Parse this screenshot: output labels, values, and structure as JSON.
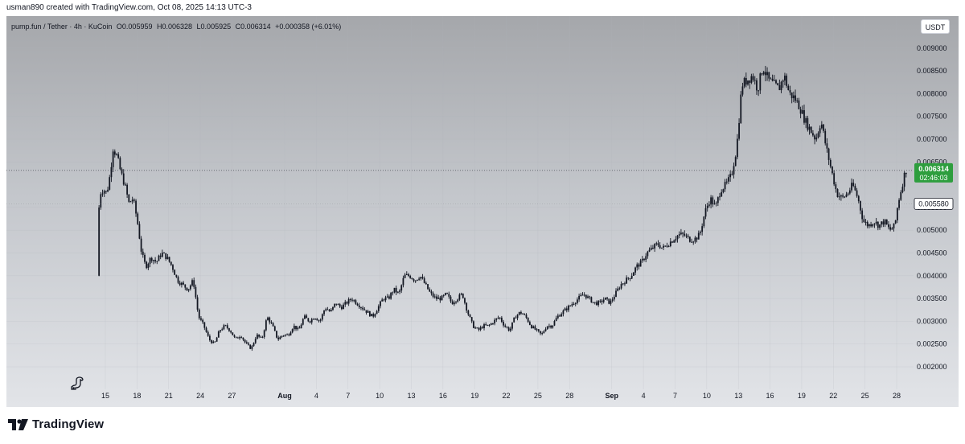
{
  "header": {
    "credit": "usman890 created with TradingView.com, Oct 08, 2025 14:13 UTC-3"
  },
  "legend": {
    "symbol": "pump.fun / Tether · 4h · KuCoin",
    "open": "O0.005959",
    "high": "H0.006328",
    "low": "L0.005925",
    "close": "C0.006314",
    "change": "+0.000358 (+6.01%)"
  },
  "currency_button": "USDT",
  "price_badge": {
    "price": "0.006314",
    "countdown": "02:46:03",
    "color": "#2e9e3e"
  },
  "secondary_badge": {
    "price": "0.005580"
  },
  "footer": {
    "logo_text": "TradingView"
  },
  "colors": {
    "candle": "#131722",
    "background_top": "#a5a7ab",
    "background_bottom": "#e2e4e8"
  },
  "chart_data": {
    "type": "candlestick",
    "symbol": "pump.fun / Tether",
    "interval": "4h",
    "exchange": "KuCoin",
    "y_ticks": [
      0.009,
      0.0085,
      0.008,
      0.0075,
      0.007,
      0.0065,
      0.0055,
      0.005,
      0.0045,
      0.004,
      0.0035,
      0.003,
      0.0025,
      0.002
    ],
    "y_tick_labels": [
      "0.009000",
      "0.008500",
      "0.008000",
      "0.007500",
      "0.007000",
      "0.006500",
      "0.005500",
      "0.005000",
      "0.004500",
      "0.004000",
      "0.003500",
      "0.003000",
      "0.002500",
      "0.002000"
    ],
    "ylim": [
      0.0017,
      0.0095
    ],
    "x_ticks": [
      {
        "label": "15",
        "day": 15,
        "bold": false
      },
      {
        "label": "18",
        "day": 18,
        "bold": false
      },
      {
        "label": "21",
        "day": 21,
        "bold": false
      },
      {
        "label": "24",
        "day": 24,
        "bold": false
      },
      {
        "label": "27",
        "day": 27,
        "bold": false
      },
      {
        "label": "Aug",
        "day": 32,
        "bold": true
      },
      {
        "label": "4",
        "day": 35,
        "bold": false
      },
      {
        "label": "7",
        "day": 38,
        "bold": false
      },
      {
        "label": "10",
        "day": 41,
        "bold": false
      },
      {
        "label": "13",
        "day": 44,
        "bold": false
      },
      {
        "label": "16",
        "day": 47,
        "bold": false
      },
      {
        "label": "19",
        "day": 50,
        "bold": false
      },
      {
        "label": "22",
        "day": 53,
        "bold": false
      },
      {
        "label": "25",
        "day": 56,
        "bold": false
      },
      {
        "label": "28",
        "day": 59,
        "bold": false
      },
      {
        "label": "Sep",
        "day": 63,
        "bold": true
      },
      {
        "label": "4",
        "day": 66,
        "bold": false
      },
      {
        "label": "7",
        "day": 69,
        "bold": false
      },
      {
        "label": "10",
        "day": 72,
        "bold": false
      },
      {
        "label": "13",
        "day": 75,
        "bold": false
      },
      {
        "label": "16",
        "day": 78,
        "bold": false
      },
      {
        "label": "19",
        "day": 81,
        "bold": false
      },
      {
        "label": "22",
        "day": 84,
        "bold": false
      },
      {
        "label": "25",
        "day": 87,
        "bold": false
      },
      {
        "label": "28",
        "day": 90,
        "bold": false
      }
    ],
    "price_path": [
      {
        "day": 14.4,
        "price": 0.004
      },
      {
        "day": 14.6,
        "price": 0.0058
      },
      {
        "day": 15.0,
        "price": 0.0059
      },
      {
        "day": 15.3,
        "price": 0.0058
      },
      {
        "day": 15.6,
        "price": 0.0062
      },
      {
        "day": 15.9,
        "price": 0.0068
      },
      {
        "day": 16.3,
        "price": 0.0066
      },
      {
        "day": 16.6,
        "price": 0.0063
      },
      {
        "day": 17.0,
        "price": 0.006
      },
      {
        "day": 17.4,
        "price": 0.0056
      },
      {
        "day": 17.8,
        "price": 0.0057
      },
      {
        "day": 18.2,
        "price": 0.0052
      },
      {
        "day": 18.6,
        "price": 0.0045
      },
      {
        "day": 19.0,
        "price": 0.0042
      },
      {
        "day": 19.5,
        "price": 0.0044
      },
      {
        "day": 20.0,
        "price": 0.0043
      },
      {
        "day": 20.5,
        "price": 0.0045
      },
      {
        "day": 21.0,
        "price": 0.0044
      },
      {
        "day": 21.5,
        "price": 0.0042
      },
      {
        "day": 22.0,
        "price": 0.0039
      },
      {
        "day": 22.5,
        "price": 0.0038
      },
      {
        "day": 23.0,
        "price": 0.0037
      },
      {
        "day": 23.5,
        "price": 0.0039
      },
      {
        "day": 24.0,
        "price": 0.0031
      },
      {
        "day": 24.5,
        "price": 0.0029
      },
      {
        "day": 25.0,
        "price": 0.0026
      },
      {
        "day": 25.5,
        "price": 0.0025
      },
      {
        "day": 26.0,
        "price": 0.0028
      },
      {
        "day": 26.5,
        "price": 0.0029
      },
      {
        "day": 27.0,
        "price": 0.0028
      },
      {
        "day": 27.5,
        "price": 0.0026
      },
      {
        "day": 28.0,
        "price": 0.0027
      },
      {
        "day": 28.5,
        "price": 0.0025
      },
      {
        "day": 29.0,
        "price": 0.0024
      },
      {
        "day": 29.5,
        "price": 0.0027
      },
      {
        "day": 30.0,
        "price": 0.0026
      },
      {
        "day": 30.5,
        "price": 0.0031
      },
      {
        "day": 31.0,
        "price": 0.0029
      },
      {
        "day": 31.5,
        "price": 0.0026
      },
      {
        "day": 32.0,
        "price": 0.0027
      },
      {
        "day": 32.5,
        "price": 0.0027
      },
      {
        "day": 33.0,
        "price": 0.0029
      },
      {
        "day": 33.5,
        "price": 0.0028
      },
      {
        "day": 34.0,
        "price": 0.0031
      },
      {
        "day": 34.5,
        "price": 0.003
      },
      {
        "day": 35.0,
        "price": 0.0031
      },
      {
        "day": 35.5,
        "price": 0.003
      },
      {
        "day": 36.0,
        "price": 0.0033
      },
      {
        "day": 36.5,
        "price": 0.0032
      },
      {
        "day": 37.0,
        "price": 0.0034
      },
      {
        "day": 37.5,
        "price": 0.0033
      },
      {
        "day": 38.0,
        "price": 0.0034
      },
      {
        "day": 38.5,
        "price": 0.0035
      },
      {
        "day": 39.0,
        "price": 0.0034
      },
      {
        "day": 39.5,
        "price": 0.0033
      },
      {
        "day": 40.0,
        "price": 0.0032
      },
      {
        "day": 40.5,
        "price": 0.0031
      },
      {
        "day": 41.0,
        "price": 0.0033
      },
      {
        "day": 41.5,
        "price": 0.0035
      },
      {
        "day": 42.0,
        "price": 0.0035
      },
      {
        "day": 42.5,
        "price": 0.0037
      },
      {
        "day": 43.0,
        "price": 0.0036
      },
      {
        "day": 43.5,
        "price": 0.004
      },
      {
        "day": 44.0,
        "price": 0.004
      },
      {
        "day": 44.5,
        "price": 0.0039
      },
      {
        "day": 45.0,
        "price": 0.004
      },
      {
        "day": 45.5,
        "price": 0.0038
      },
      {
        "day": 46.0,
        "price": 0.0036
      },
      {
        "day": 46.5,
        "price": 0.0035
      },
      {
        "day": 47.0,
        "price": 0.0035
      },
      {
        "day": 47.5,
        "price": 0.0036
      },
      {
        "day": 48.0,
        "price": 0.0034
      },
      {
        "day": 48.5,
        "price": 0.0035
      },
      {
        "day": 49.0,
        "price": 0.0036
      },
      {
        "day": 49.5,
        "price": 0.0032
      },
      {
        "day": 50.0,
        "price": 0.0029
      },
      {
        "day": 50.5,
        "price": 0.0028
      },
      {
        "day": 51.0,
        "price": 0.0029
      },
      {
        "day": 51.5,
        "price": 0.0029
      },
      {
        "day": 52.0,
        "price": 0.003
      },
      {
        "day": 52.5,
        "price": 0.0031
      },
      {
        "day": 53.0,
        "price": 0.0029
      },
      {
        "day": 53.5,
        "price": 0.0028
      },
      {
        "day": 54.0,
        "price": 0.0031
      },
      {
        "day": 54.5,
        "price": 0.0032
      },
      {
        "day": 55.0,
        "price": 0.0031
      },
      {
        "day": 55.5,
        "price": 0.0029
      },
      {
        "day": 56.0,
        "price": 0.0028
      },
      {
        "day": 56.5,
        "price": 0.0027
      },
      {
        "day": 57.0,
        "price": 0.0029
      },
      {
        "day": 57.5,
        "price": 0.0029
      },
      {
        "day": 58.0,
        "price": 0.0031
      },
      {
        "day": 58.5,
        "price": 0.0032
      },
      {
        "day": 59.0,
        "price": 0.0033
      },
      {
        "day": 59.5,
        "price": 0.0034
      },
      {
        "day": 60.0,
        "price": 0.0035
      },
      {
        "day": 60.5,
        "price": 0.0036
      },
      {
        "day": 61.0,
        "price": 0.0035
      },
      {
        "day": 61.5,
        "price": 0.0034
      },
      {
        "day": 62.0,
        "price": 0.0034
      },
      {
        "day": 62.5,
        "price": 0.0035
      },
      {
        "day": 63.0,
        "price": 0.0034
      },
      {
        "day": 63.5,
        "price": 0.0036
      },
      {
        "day": 64.0,
        "price": 0.0038
      },
      {
        "day": 64.5,
        "price": 0.0039
      },
      {
        "day": 65.0,
        "price": 0.004
      },
      {
        "day": 65.5,
        "price": 0.0042
      },
      {
        "day": 66.0,
        "price": 0.0043
      },
      {
        "day": 66.5,
        "price": 0.0045
      },
      {
        "day": 67.0,
        "price": 0.0046
      },
      {
        "day": 67.5,
        "price": 0.0047
      },
      {
        "day": 68.0,
        "price": 0.0046
      },
      {
        "day": 68.5,
        "price": 0.0047
      },
      {
        "day": 69.0,
        "price": 0.0048
      },
      {
        "day": 69.5,
        "price": 0.0049
      },
      {
        "day": 70.0,
        "price": 0.0049
      },
      {
        "day": 70.5,
        "price": 0.0048
      },
      {
        "day": 71.0,
        "price": 0.0048
      },
      {
        "day": 71.5,
        "price": 0.0049
      },
      {
        "day": 72.0,
        "price": 0.0054
      },
      {
        "day": 72.5,
        "price": 0.0057
      },
      {
        "day": 73.0,
        "price": 0.0055
      },
      {
        "day": 73.5,
        "price": 0.0059
      },
      {
        "day": 74.0,
        "price": 0.006
      },
      {
        "day": 74.5,
        "price": 0.0062
      },
      {
        "day": 75.0,
        "price": 0.0068
      },
      {
        "day": 75.5,
        "price": 0.0082
      },
      {
        "day": 76.0,
        "price": 0.0083
      },
      {
        "day": 76.5,
        "price": 0.0084
      },
      {
        "day": 77.0,
        "price": 0.0081
      },
      {
        "day": 77.5,
        "price": 0.0086
      },
      {
        "day": 78.0,
        "price": 0.0083
      },
      {
        "day": 78.5,
        "price": 0.0082
      },
      {
        "day": 79.0,
        "price": 0.0081
      },
      {
        "day": 79.5,
        "price": 0.0084
      },
      {
        "day": 80.0,
        "price": 0.008
      },
      {
        "day": 80.5,
        "price": 0.0079
      },
      {
        "day": 81.0,
        "price": 0.0077
      },
      {
        "day": 81.5,
        "price": 0.0074
      },
      {
        "day": 82.0,
        "price": 0.0072
      },
      {
        "day": 82.5,
        "price": 0.007
      },
      {
        "day": 83.0,
        "price": 0.0074
      },
      {
        "day": 83.5,
        "price": 0.0068
      },
      {
        "day": 84.0,
        "price": 0.0063
      },
      {
        "day": 84.5,
        "price": 0.0058
      },
      {
        "day": 85.0,
        "price": 0.0057
      },
      {
        "day": 85.5,
        "price": 0.0058
      },
      {
        "day": 86.0,
        "price": 0.006
      },
      {
        "day": 86.5,
        "price": 0.0057
      },
      {
        "day": 87.0,
        "price": 0.0052
      },
      {
        "day": 87.5,
        "price": 0.0051
      },
      {
        "day": 88.0,
        "price": 0.0052
      },
      {
        "day": 88.5,
        "price": 0.0051
      },
      {
        "day": 89.0,
        "price": 0.0052
      },
      {
        "day": 89.5,
        "price": 0.005
      },
      {
        "day": 90.0,
        "price": 0.0051
      },
      {
        "day": 90.3,
        "price": 0.0056
      },
      {
        "day": 90.6,
        "price": 0.0059
      },
      {
        "day": 91.0,
        "price": 0.006314
      }
    ],
    "xlim": [
      14.0,
      92.5
    ]
  }
}
